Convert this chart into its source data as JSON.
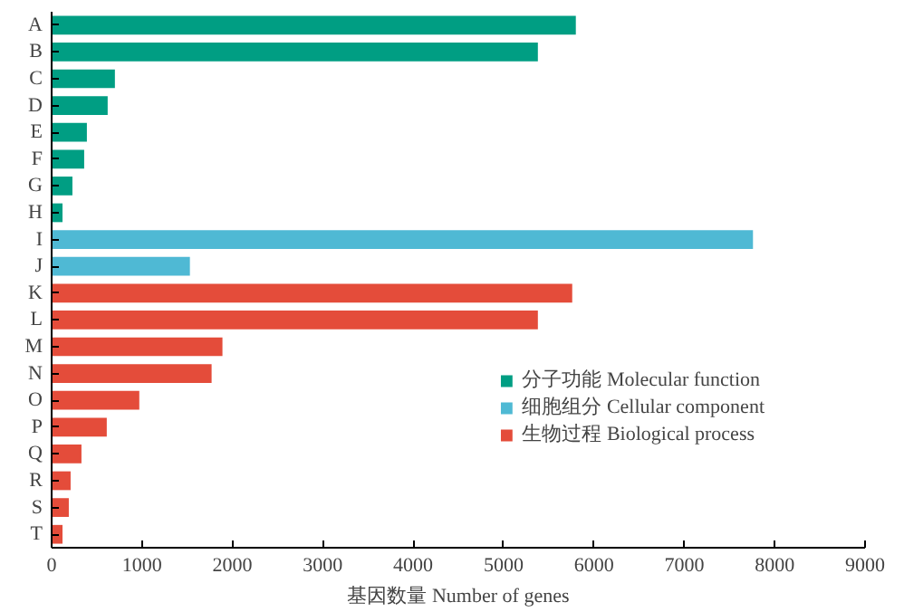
{
  "chart_data": {
    "type": "bar",
    "orientation": "horizontal",
    "xlabel": "基因数量 Number of genes",
    "categories": [
      "A",
      "B",
      "C",
      "D",
      "E",
      "F",
      "G",
      "H",
      "I",
      "J",
      "K",
      "L",
      "M",
      "N",
      "O",
      "P",
      "Q",
      "R",
      "S",
      "T"
    ],
    "series": [
      {
        "name": "分子功能 Molecular function",
        "color": "#009e83",
        "values": [
          5800,
          5380,
          700,
          620,
          390,
          360,
          230,
          120,
          null,
          null,
          null,
          null,
          null,
          null,
          null,
          null,
          null,
          null,
          null,
          null
        ]
      },
      {
        "name": "细胞组分 Cellular component",
        "color": "#4fb9d4",
        "values": [
          null,
          null,
          null,
          null,
          null,
          null,
          null,
          null,
          7760,
          1530,
          null,
          null,
          null,
          null,
          null,
          null,
          null,
          null,
          null,
          null
        ]
      },
      {
        "name": "生物过程 Biological process",
        "color": "#e44c3a",
        "values": [
          null,
          null,
          null,
          null,
          null,
          null,
          null,
          null,
          null,
          null,
          5760,
          5380,
          1890,
          1770,
          970,
          610,
          330,
          210,
          190,
          120
        ]
      }
    ],
    "xlim": [
      0,
      9000
    ],
    "xticks": [
      0,
      1000,
      2000,
      3000,
      4000,
      5000,
      6000,
      7000,
      8000,
      9000
    ],
    "grid": false,
    "legend": "right"
  }
}
